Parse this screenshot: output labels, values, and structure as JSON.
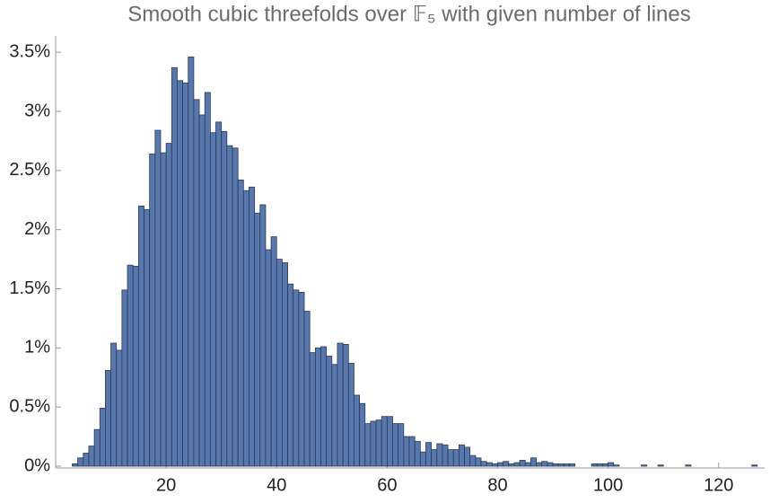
{
  "chart_data": {
    "type": "histogram",
    "title": "Smooth cubic threefolds over 𝔽₅ with given number of lines",
    "bins": [
      3,
      4,
      5,
      6,
      7,
      8,
      9,
      10,
      11,
      12,
      13,
      14,
      15,
      16,
      17,
      18,
      19,
      20,
      21,
      22,
      23,
      24,
      25,
      26,
      27,
      28,
      29,
      30,
      31,
      32,
      33,
      34,
      35,
      36,
      37,
      38,
      39,
      40,
      41,
      42,
      43,
      44,
      45,
      46,
      47,
      48,
      49,
      50,
      51,
      52,
      53,
      54,
      55,
      56,
      57,
      58,
      59,
      60,
      61,
      62,
      63,
      64,
      65,
      66,
      67,
      68,
      69,
      70,
      71,
      72,
      73,
      74,
      75,
      76,
      77,
      78,
      79,
      80,
      81,
      82,
      83,
      84,
      85,
      86,
      87,
      88,
      89,
      90,
      91,
      92,
      93,
      94,
      95,
      96,
      97,
      98,
      99,
      100,
      101,
      102,
      103,
      104,
      105,
      106,
      107,
      108,
      109,
      110,
      111,
      112,
      113,
      114,
      115,
      116,
      117,
      118,
      119,
      120,
      121,
      122,
      123,
      124,
      125,
      126,
      127
    ],
    "counts": [
      0.02,
      0.07,
      0.11,
      0.17,
      0.31,
      0.49,
      0.81,
      1.04,
      0.98,
      1.49,
      1.7,
      1.69,
      2.2,
      2.17,
      2.64,
      2.84,
      2.65,
      2.73,
      3.37,
      3.26,
      3.24,
      3.46,
      3.1,
      2.97,
      3.16,
      2.82,
      2.91,
      2.83,
      2.71,
      2.69,
      2.42,
      2.33,
      2.36,
      2.14,
      2.21,
      1.83,
      1.94,
      1.75,
      1.72,
      1.54,
      1.49,
      1.47,
      1.31,
      0.96,
      1.0,
      1.01,
      0.93,
      0.86,
      1.04,
      1.03,
      0.87,
      0.6,
      0.53,
      0.36,
      0.38,
      0.39,
      0.42,
      0.42,
      0.36,
      0.36,
      0.25,
      0.25,
      0.21,
      0.12,
      0.2,
      0.14,
      0.19,
      0.18,
      0.14,
      0.14,
      0.18,
      0.16,
      0.09,
      0.07,
      0.04,
      0.03,
      0.02,
      0.03,
      0.04,
      0.02,
      0.03,
      0.05,
      0.03,
      0.07,
      0.03,
      0.04,
      0.03,
      0.02,
      0.02,
      0.02,
      0.02,
      0,
      0,
      0,
      0.02,
      0.02,
      0.02,
      0.03,
      0.01,
      0,
      0,
      0,
      0,
      0.01,
      0,
      0,
      0.01,
      0,
      0,
      0,
      0,
      0.01,
      0,
      0,
      0,
      0,
      0,
      0,
      0,
      0,
      0,
      0,
      0,
      0.01
    ],
    "color": "#5877ad",
    "xlim": [
      0,
      128
    ],
    "ylim": [
      0,
      3.6
    ],
    "xticks": [
      20,
      40,
      60,
      80,
      100,
      120
    ],
    "yticks": [
      {
        "value": 0,
        "label": "0%"
      },
      {
        "value": 0.5,
        "label": "0.5%"
      },
      {
        "value": 1,
        "label": "1%"
      },
      {
        "value": 1.5,
        "label": "1.5%"
      },
      {
        "value": 2,
        "label": "2%"
      },
      {
        "value": 2.5,
        "label": "2.5%"
      },
      {
        "value": 3,
        "label": "3%"
      },
      {
        "value": 3.5,
        "label": "3.5%"
      }
    ]
  }
}
